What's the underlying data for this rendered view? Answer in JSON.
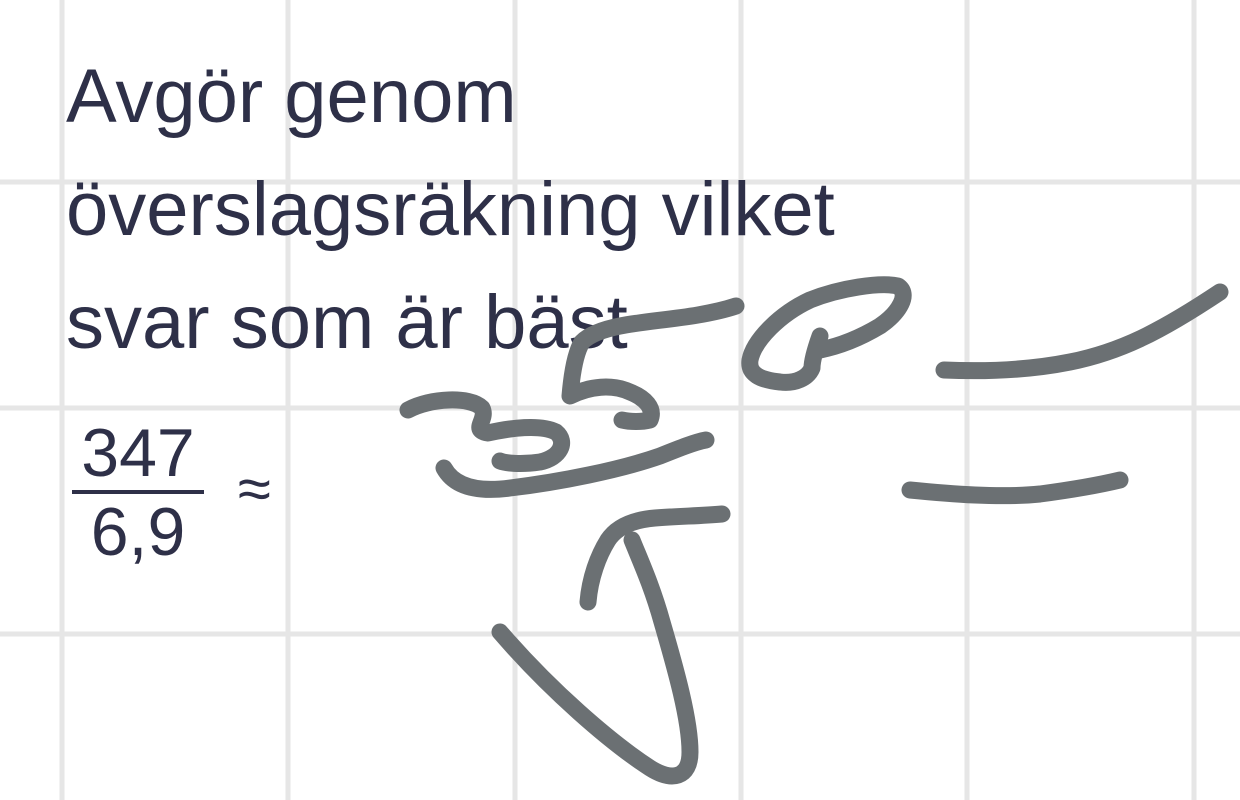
{
  "question": {
    "lines": [
      "Avgör genom",
      "överslagsräkning vilket",
      "svar som är bäst"
    ]
  },
  "expression": {
    "numerator": "347",
    "denominator": "6,9",
    "symbol": "≈"
  },
  "colors": {
    "background": "#ffffff",
    "grid": "#e6e6e6",
    "text": "#2e3048",
    "ink": "#6b7073"
  }
}
